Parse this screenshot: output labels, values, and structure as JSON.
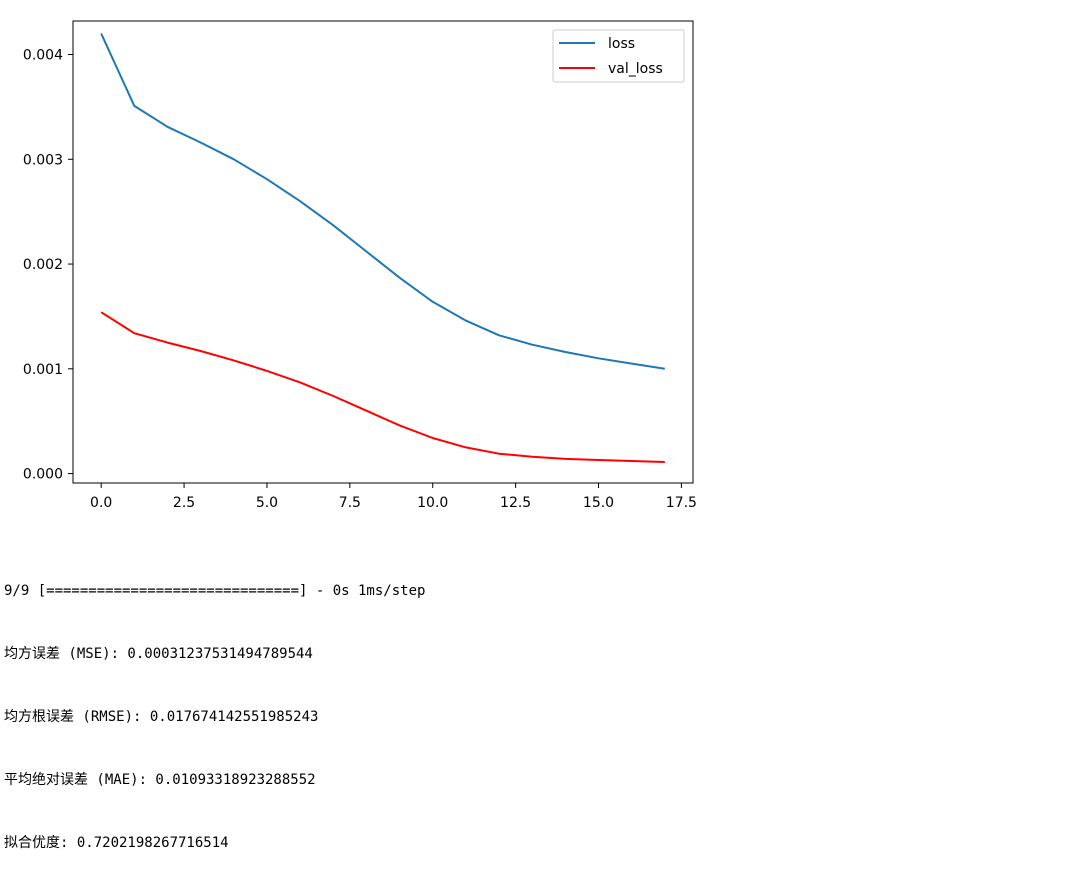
{
  "chart_data": {
    "type": "line",
    "title": "",
    "xlabel": "",
    "ylabel": "",
    "xlim": [
      -0.85,
      17.85
    ],
    "ylim": [
      -9e-05,
      0.00432
    ],
    "xticks": [
      0,
      2.5,
      5,
      7.5,
      10,
      12.5,
      15,
      17.5
    ],
    "xtick_labels": [
      "0.0",
      "2.5",
      "5.0",
      "7.5",
      "10.0",
      "12.5",
      "15.0",
      "17.5"
    ],
    "yticks": [
      0,
      0.001,
      0.002,
      0.003,
      0.004
    ],
    "ytick_labels": [
      "0.000",
      "0.001",
      "0.002",
      "0.003",
      "0.004"
    ],
    "grid": false,
    "legend_position": "top-right",
    "x": [
      0,
      1,
      2,
      3,
      4,
      5,
      6,
      7,
      8,
      9,
      10,
      11,
      12,
      13,
      14,
      15,
      16,
      17
    ],
    "series": [
      {
        "name": "loss",
        "color": "#1f77b4",
        "values": [
          0.0042,
          0.00351,
          0.00331,
          0.00316,
          0.003,
          0.00281,
          0.0026,
          0.00237,
          0.00212,
          0.00187,
          0.00164,
          0.00146,
          0.00132,
          0.00123,
          0.00116,
          0.0011,
          0.00105,
          0.001
        ]
      },
      {
        "name": "val_loss",
        "color": "#ff0000",
        "values": [
          0.00154,
          0.00134,
          0.00125,
          0.00117,
          0.00108,
          0.00098,
          0.00087,
          0.00074,
          0.0006,
          0.00046,
          0.00034,
          0.00025,
          0.00019,
          0.00016,
          0.00014,
          0.00013,
          0.00012,
          0.00011
        ]
      }
    ]
  },
  "console": {
    "lines": [
      "9/9 [==============================] - 0s 1ms/step",
      "均方误差 (MSE): 0.00031237531494789544",
      "均方根误差 (RMSE): 0.017674142551985243",
      "平均绝对误差 (MAE): 0.01093318923288552",
      "拟合优度: 0.7202198267716514"
    ]
  }
}
